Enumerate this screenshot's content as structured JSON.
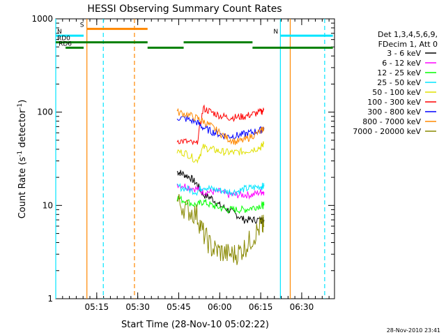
{
  "chart_data": {
    "type": "line",
    "title": "HESSI Observing Summary Count Rates",
    "xlabel": "Start Time (28-Nov-10 05:02:22)",
    "ylabel_main": "Count Rate (s",
    "ylabel_sup1": "-1",
    "ylabel_mid": " detector",
    "ylabel_sup2": "-1",
    "ylabel_end": ")",
    "yscale": "log",
    "ylim": [
      1,
      1000
    ],
    "xlim_minutes": [
      5.0,
      6.7
    ],
    "x_ticks": [
      {
        "label": "05:15",
        "v": 5.25
      },
      {
        "label": "05:30",
        "v": 5.5
      },
      {
        "label": "05:45",
        "v": 5.75
      },
      {
        "label": "06:00",
        "v": 6.0
      },
      {
        "label": "06:15",
        "v": 6.25
      },
      {
        "label": "06:30",
        "v": 6.5
      }
    ],
    "y_ticks": [
      {
        "label": "1",
        "v": 1
      },
      {
        "label": "10",
        "v": 10
      },
      {
        "label": "100",
        "v": 100
      },
      {
        "label": "1000",
        "v": 1000
      }
    ],
    "legend_header": [
      "Det 1,3,4,5,6,9,",
      "FDecim 1, Att 0"
    ],
    "series": [
      {
        "name": "3 - 6 keV",
        "color": "#000000",
        "values": [
          [
            5.74,
            23
          ],
          [
            5.77,
            22
          ],
          [
            5.82,
            20
          ],
          [
            5.86,
            17
          ],
          [
            5.9,
            13
          ],
          [
            5.95,
            12
          ],
          [
            6.0,
            10
          ],
          [
            6.05,
            9
          ],
          [
            6.1,
            8
          ],
          [
            6.15,
            7
          ],
          [
            6.2,
            7
          ],
          [
            6.25,
            7
          ],
          [
            6.27,
            7
          ]
        ]
      },
      {
        "name": "6 - 12 keV",
        "color": "#ff00ff",
        "values": [
          [
            5.74,
            17
          ],
          [
            5.8,
            16
          ],
          [
            5.86,
            15
          ],
          [
            5.9,
            14
          ],
          [
            5.95,
            14
          ],
          [
            6.0,
            14
          ],
          [
            6.05,
            13
          ],
          [
            6.1,
            13
          ],
          [
            6.15,
            13
          ],
          [
            6.2,
            13
          ],
          [
            6.25,
            14
          ],
          [
            6.27,
            14
          ]
        ]
      },
      {
        "name": "12 - 25 keV",
        "color": "#00ff00",
        "values": [
          [
            5.74,
            12
          ],
          [
            5.8,
            11
          ],
          [
            5.86,
            10
          ],
          [
            5.9,
            11
          ],
          [
            5.95,
            10
          ],
          [
            6.0,
            9.5
          ],
          [
            6.05,
            9
          ],
          [
            6.1,
            9
          ],
          [
            6.15,
            9
          ],
          [
            6.2,
            9.5
          ],
          [
            6.25,
            10
          ],
          [
            6.27,
            10
          ]
        ]
      },
      {
        "name": "25 - 50 keV",
        "color": "#00e5ff",
        "values": [
          [
            5.74,
            16
          ],
          [
            5.8,
            15
          ],
          [
            5.86,
            14
          ],
          [
            5.9,
            16
          ],
          [
            5.95,
            15
          ],
          [
            6.0,
            14.5
          ],
          [
            6.05,
            14
          ],
          [
            6.1,
            14
          ],
          [
            6.15,
            15
          ],
          [
            6.2,
            15.5
          ],
          [
            6.25,
            16
          ],
          [
            6.27,
            16
          ]
        ]
      },
      {
        "name": "50 - 100 keV",
        "color": "#e0e000",
        "values": [
          [
            5.74,
            38
          ],
          [
            5.8,
            36
          ],
          [
            5.86,
            30
          ],
          [
            5.9,
            42
          ],
          [
            5.95,
            40
          ],
          [
            6.0,
            38
          ],
          [
            6.05,
            37
          ],
          [
            6.1,
            37
          ],
          [
            6.15,
            38
          ],
          [
            6.2,
            40
          ],
          [
            6.25,
            42
          ],
          [
            6.27,
            46
          ]
        ]
      },
      {
        "name": "100 - 300 keV",
        "color": "#ff0000",
        "values": [
          [
            5.74,
            50
          ],
          [
            5.8,
            48
          ],
          [
            5.86,
            45
          ],
          [
            5.9,
            110
          ],
          [
            5.95,
            100
          ],
          [
            6.0,
            92
          ],
          [
            6.05,
            88
          ],
          [
            6.1,
            88
          ],
          [
            6.15,
            90
          ],
          [
            6.2,
            95
          ],
          [
            6.25,
            100
          ],
          [
            6.27,
            105
          ]
        ]
      },
      {
        "name": "300 - 800 keV",
        "color": "#0000ff",
        "values": [
          [
            5.74,
            88
          ],
          [
            5.8,
            84
          ],
          [
            5.86,
            78
          ],
          [
            5.9,
            68
          ],
          [
            5.95,
            62
          ],
          [
            6.0,
            58
          ],
          [
            6.05,
            55
          ],
          [
            6.1,
            56
          ],
          [
            6.15,
            58
          ],
          [
            6.2,
            61
          ],
          [
            6.25,
            64
          ],
          [
            6.27,
            68
          ]
        ]
      },
      {
        "name": "800 - 7000 keV",
        "color": "#ff8800",
        "values": [
          [
            5.74,
            100
          ],
          [
            5.8,
            95
          ],
          [
            5.86,
            86
          ],
          [
            5.9,
            80
          ],
          [
            5.95,
            70
          ],
          [
            6.0,
            60
          ],
          [
            6.05,
            52
          ],
          [
            6.1,
            48
          ],
          [
            6.15,
            50
          ],
          [
            6.2,
            56
          ],
          [
            6.25,
            62
          ],
          [
            6.27,
            68
          ]
        ]
      },
      {
        "name": "7000 - 20000 keV",
        "color": "#888800",
        "values": [
          [
            5.74,
            11
          ],
          [
            5.8,
            9
          ],
          [
            5.86,
            8
          ],
          [
            5.9,
            5
          ],
          [
            5.95,
            3.5
          ],
          [
            6.0,
            3.2
          ],
          [
            6.05,
            3
          ],
          [
            6.1,
            3
          ],
          [
            6.15,
            3.5
          ],
          [
            6.2,
            4.5
          ],
          [
            6.25,
            6
          ],
          [
            6.27,
            6
          ]
        ]
      }
    ],
    "mode_bars": [
      {
        "label": "S",
        "color": "#ff8800",
        "v": 780,
        "start": 5.19,
        "end": 5.56
      },
      {
        "label": "N",
        "color": "#00e5ff",
        "v": 660,
        "start": 5.0,
        "end": 5.17
      },
      {
        "label": "N",
        "color": "#00e5ff",
        "v": 660,
        "start": 6.37,
        "end": 6.69
      },
      {
        "label": "RD0",
        "color": "#008000",
        "v": 560,
        "start": 5.0,
        "end": 5.56
      },
      {
        "label": "RD6",
        "color": "#008000",
        "v": 490,
        "start": 5.06,
        "end": 5.17
      },
      {
        "label": "",
        "color": "#008000",
        "v": 490,
        "start": 5.56,
        "end": 5.78
      },
      {
        "label": "",
        "color": "#008000",
        "v": 560,
        "start": 5.78,
        "end": 6.2
      },
      {
        "label": "",
        "color": "#008000",
        "v": 490,
        "start": 6.2,
        "end": 6.69
      }
    ],
    "vlines": [
      {
        "v": 5.19,
        "color": "#ff8800",
        "style": "solid"
      },
      {
        "v": 5.48,
        "color": "#ff8800",
        "style": "dashed"
      },
      {
        "v": 5.0,
        "color": "#00e5ff",
        "style": "solid"
      },
      {
        "v": 5.29,
        "color": "#00e5ff",
        "style": "dashed"
      },
      {
        "v": 6.37,
        "color": "#00e5ff",
        "style": "solid"
      },
      {
        "v": 6.64,
        "color": "#00e5ff",
        "style": "dashed"
      },
      {
        "v": 6.43,
        "color": "#ff8800",
        "style": "solid"
      }
    ],
    "grid": false,
    "legend_position": "right"
  },
  "footer_timestamp": "28-Nov-2010 23:41"
}
